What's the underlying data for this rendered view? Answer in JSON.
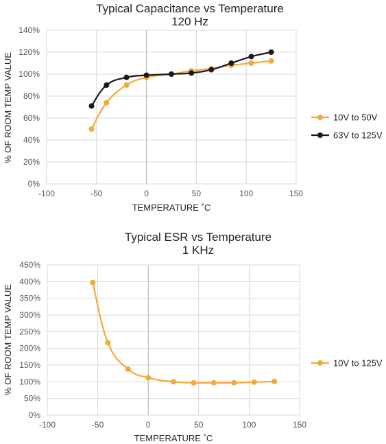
{
  "chart_data": [
    {
      "type": "line",
      "title": "Typical Capacitance vs Temperature",
      "subtitle": "120 Hz",
      "xlabel": "TEMPERATURE  ˚C",
      "ylabel": "% OF ROOM TEMP VALUE",
      "xlim": [
        -100,
        150
      ],
      "ylim": [
        0,
        140
      ],
      "x_ticks": [
        "-100",
        "-50",
        "0",
        "50",
        "100",
        "150"
      ],
      "y_ticks": [
        "0%",
        "20%",
        "40%",
        "60%",
        "80%",
        "100%",
        "120%",
        "140%"
      ],
      "grid": true,
      "legend_position": "right",
      "series": [
        {
          "name": "10V to 50V",
          "color": "#f5a83a",
          "x": [
            -55,
            -40,
            -20,
            0,
            25,
            45,
            65,
            85,
            105,
            125
          ],
          "y": [
            50,
            74,
            90,
            97,
            100,
            103,
            105,
            108,
            110,
            112
          ]
        },
        {
          "name": "63V to 125V",
          "color": "#1a1a1a",
          "x": [
            -55,
            -40,
            -20,
            0,
            25,
            45,
            65,
            85,
            105,
            125
          ],
          "y": [
            71,
            90,
            97,
            99,
            100,
            101,
            104,
            110,
            116,
            120
          ]
        }
      ]
    },
    {
      "type": "line",
      "title": "Typical ESR vs Temperature",
      "subtitle": "1 KHz",
      "xlabel": "TEMPERATURE  ˚C",
      "ylabel": "% OF ROOM TEMP VALUE",
      "xlim": [
        -100,
        150
      ],
      "ylim": [
        0,
        450
      ],
      "x_ticks": [
        "-100",
        "-50",
        "0",
        "50",
        "100",
        "150"
      ],
      "y_ticks": [
        "0%",
        "50%",
        "100%",
        "150%",
        "200%",
        "250%",
        "300%",
        "350%",
        "400%",
        "450%"
      ],
      "grid": true,
      "legend_position": "right",
      "series": [
        {
          "name": "10V to 125V",
          "color": "#f5a83a",
          "x": [
            -55,
            -40,
            -20,
            0,
            25,
            45,
            65,
            85,
            105,
            125
          ],
          "y": [
            397,
            217,
            138,
            112,
            100,
            97,
            97,
            97,
            99,
            101
          ]
        }
      ]
    }
  ]
}
